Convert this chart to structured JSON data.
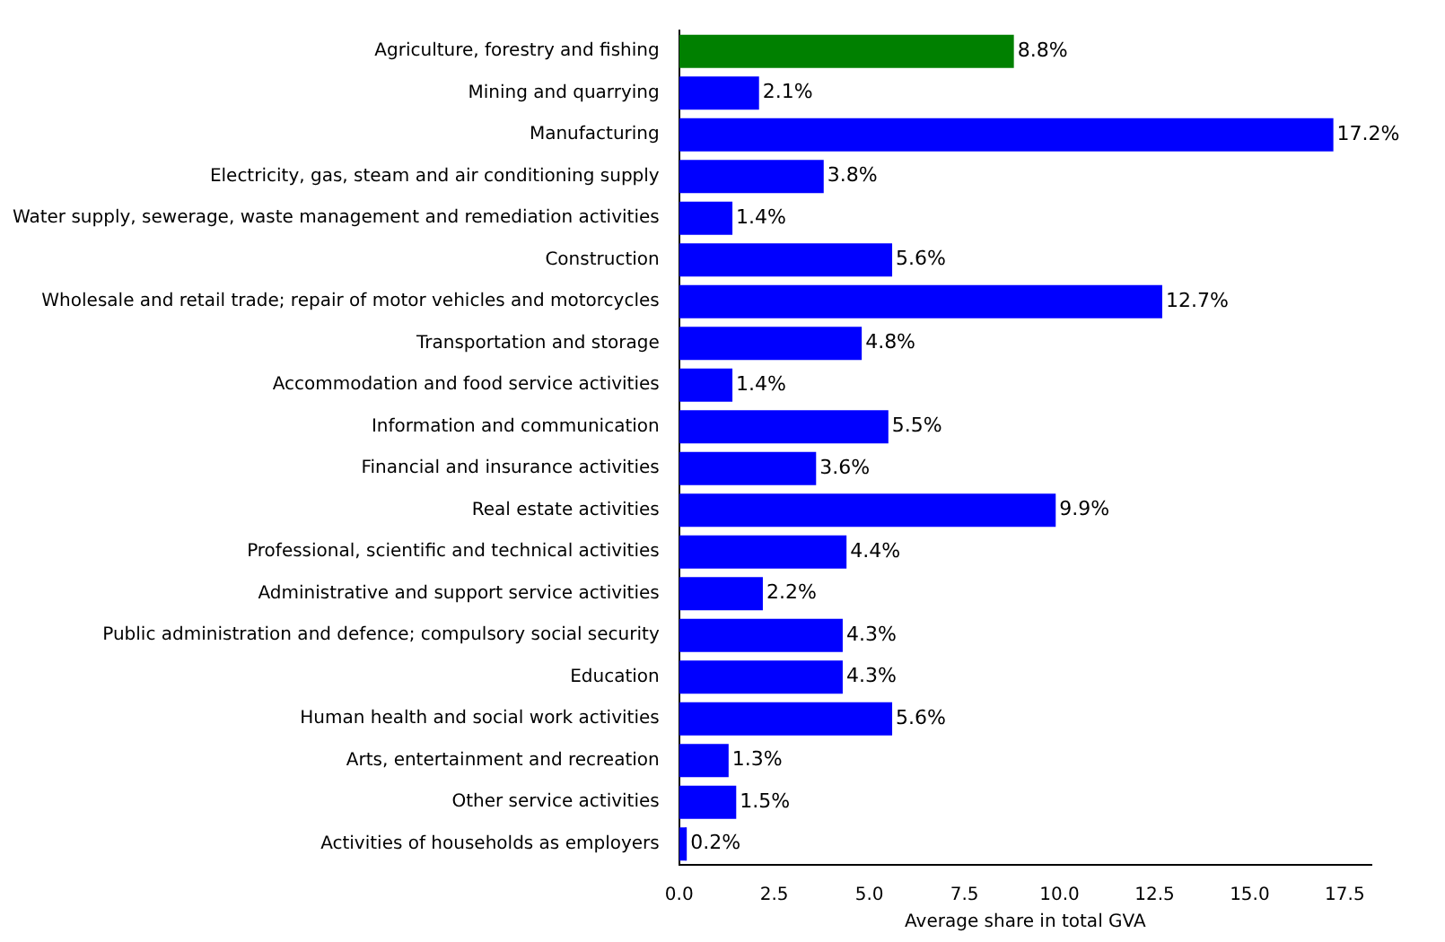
{
  "chart_data": {
    "type": "bar",
    "orientation": "horizontal",
    "xlabel": "Average share in total GVA",
    "categories": [
      "Agriculture, forestry and fishing",
      "Mining and quarrying",
      "Manufacturing",
      "Electricity, gas, steam and air conditioning supply",
      "Water supply, sewerage, waste management and remediation activities",
      "Construction",
      "Wholesale and retail trade; repair of motor vehicles and motorcycles",
      "Transportation and storage",
      "Accommodation and food service activities",
      "Information and communication",
      "Financial and insurance activities",
      "Real estate activities",
      "Professional, scientific and technical activities",
      "Administrative and support service activities",
      "Public administration and defence; compulsory social security",
      "Education",
      "Human health and social work activities",
      "Arts, entertainment and recreation",
      "Other service activities",
      "Activities of households as employers"
    ],
    "values": [
      8.8,
      2.1,
      17.2,
      3.8,
      1.4,
      5.6,
      12.7,
      4.8,
      1.4,
      5.5,
      3.6,
      9.9,
      4.4,
      2.2,
      4.3,
      4.3,
      5.6,
      1.3,
      1.5,
      0.2
    ],
    "value_labels": [
      "8.8%",
      "2.1%",
      "17.2%",
      "3.8%",
      "1.4%",
      "5.6%",
      "12.7%",
      "4.8%",
      "1.4%",
      "5.5%",
      "3.6%",
      "9.9%",
      "4.4%",
      "2.2%",
      "4.3%",
      "4.3%",
      "5.6%",
      "1.3%",
      "1.5%",
      "0.2%"
    ],
    "colors": [
      "#008000",
      "#0000ff",
      "#0000ff",
      "#0000ff",
      "#0000ff",
      "#0000ff",
      "#0000ff",
      "#0000ff",
      "#0000ff",
      "#0000ff",
      "#0000ff",
      "#0000ff",
      "#0000ff",
      "#0000ff",
      "#0000ff",
      "#0000ff",
      "#0000ff",
      "#0000ff",
      "#0000ff",
      "#0000ff"
    ],
    "xlim": [
      0,
      18.2
    ],
    "xticks": [
      {
        "value": 0,
        "label": "0.0"
      },
      {
        "value": 2.5,
        "label": "2.5"
      },
      {
        "value": 5,
        "label": "5.0"
      },
      {
        "value": 7.5,
        "label": "7.5"
      },
      {
        "value": 10,
        "label": "10.0"
      },
      {
        "value": 12.5,
        "label": "12.5"
      },
      {
        "value": 15,
        "label": "15.0"
      },
      {
        "value": 17.5,
        "label": "17.5"
      }
    ],
    "grid": false,
    "legend": false
  }
}
